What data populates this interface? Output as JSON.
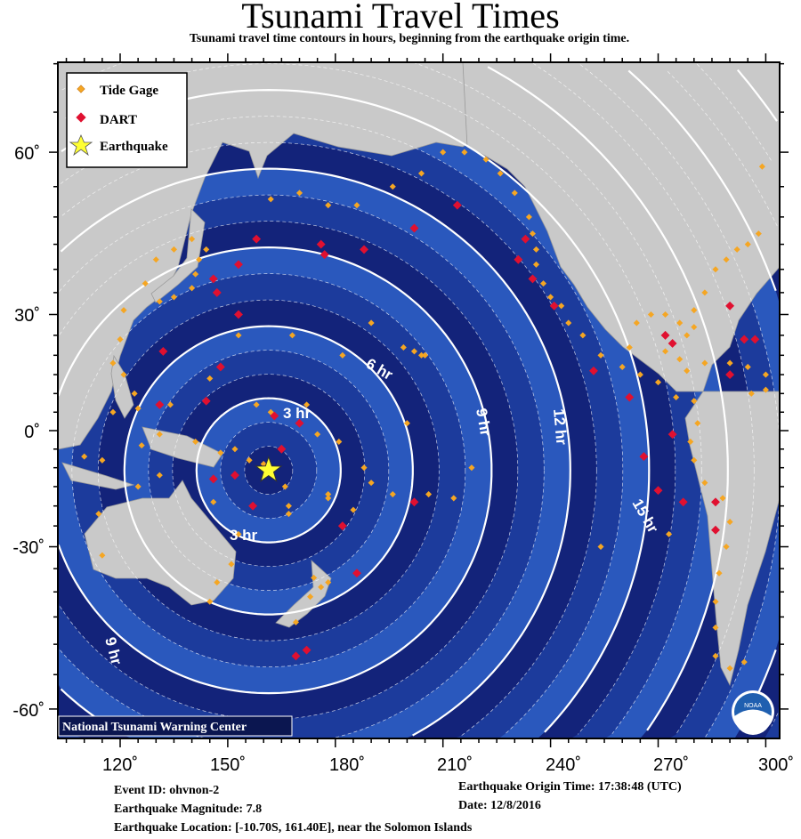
{
  "header": {
    "title": "Tsunami Travel Times",
    "subtitle": "Tsunami travel time contours in hours, beginning from the earthquake origin time."
  },
  "map": {
    "lon_ticks": [
      "120˚",
      "150˚",
      "180˚",
      "210˚",
      "240˚",
      "270˚",
      "300˚"
    ],
    "lat_ticks": [
      "60˚",
      "30˚",
      "0˚",
      "-30˚",
      "-60˚"
    ],
    "contour_labels": [
      "3 hr",
      "3 hr",
      "6 hr",
      "9 hr",
      "9 hr",
      "12 hr",
      "15 hr"
    ],
    "credit": "National Tsunami Warning Center",
    "logo_text": "NOAA",
    "colors": {
      "ocean_dark": "#0b1650",
      "band_a": "#13237a",
      "band_b": "#1c3b9c",
      "band_c": "#2a58bd",
      "land": "#c9c9c9",
      "tide_gage": "#f5a623",
      "dart": "#e01030",
      "earthquake": "#ffff33"
    },
    "earthquake": {
      "lon": 161.4,
      "lat": -10.7
    },
    "dart": [
      [
        165,
        -5
      ],
      [
        170,
        2
      ],
      [
        163,
        4
      ],
      [
        152,
        -12
      ],
      [
        146,
        -13
      ],
      [
        157,
        -20
      ],
      [
        182,
        -25
      ],
      [
        186,
        -36
      ],
      [
        202,
        -19
      ],
      [
        172,
        -51
      ],
      [
        169,
        -52
      ],
      [
        176,
        45
      ],
      [
        158,
        46
      ],
      [
        153,
        41
      ],
      [
        147,
        35
      ],
      [
        146,
        38
      ],
      [
        153,
        30
      ],
      [
        177,
        43
      ],
      [
        188,
        44
      ],
      [
        202,
        48
      ],
      [
        214,
        52
      ],
      [
        233,
        46
      ],
      [
        231,
        42
      ],
      [
        235,
        38
      ],
      [
        241,
        32
      ],
      [
        252,
        16
      ],
      [
        262,
        9
      ],
      [
        266,
        -7
      ],
      [
        274,
        -1
      ],
      [
        286,
        -19
      ],
      [
        286,
        -26
      ],
      [
        277,
        -19
      ],
      [
        270,
        -16
      ],
      [
        132,
        21
      ],
      [
        131,
        7
      ],
      [
        148,
        17
      ],
      [
        144,
        8
      ],
      [
        290,
        32
      ],
      [
        294,
        24
      ],
      [
        297,
        24
      ],
      [
        290,
        15
      ],
      [
        274,
        23
      ],
      [
        272,
        25
      ]
    ],
    "tide_gages": [
      [
        131,
        33
      ],
      [
        135,
        34
      ],
      [
        140,
        36
      ],
      [
        141,
        39
      ],
      [
        142,
        42
      ],
      [
        144,
        44
      ],
      [
        140,
        46
      ],
      [
        135,
        44
      ],
      [
        130,
        42
      ],
      [
        127,
        37
      ],
      [
        121,
        31
      ],
      [
        120,
        24
      ],
      [
        118,
        18
      ],
      [
        121,
        15
      ],
      [
        124,
        10
      ],
      [
        125,
        6
      ],
      [
        118,
        5
      ],
      [
        110,
        -7
      ],
      [
        115,
        -8
      ],
      [
        126,
        -4
      ],
      [
        131,
        -1
      ],
      [
        141,
        -3
      ],
      [
        148,
        -6
      ],
      [
        152,
        -5
      ],
      [
        156,
        -8
      ],
      [
        160,
        -9
      ],
      [
        166,
        -15
      ],
      [
        167,
        -20
      ],
      [
        167,
        -22
      ],
      [
        178,
        -18
      ],
      [
        178,
        -17
      ],
      [
        185,
        -21
      ],
      [
        190,
        -14
      ],
      [
        188,
        -10
      ],
      [
        196,
        -17
      ],
      [
        206,
        -17
      ],
      [
        213,
        -18
      ],
      [
        218,
        -10
      ],
      [
        202,
        21
      ],
      [
        204,
        20
      ],
      [
        199,
        22
      ],
      [
        205,
        20
      ],
      [
        190,
        28
      ],
      [
        182,
        20
      ],
      [
        168,
        25
      ],
      [
        153,
        25
      ],
      [
        145,
        14
      ],
      [
        134,
        7
      ],
      [
        158,
        7
      ],
      [
        162,
        5
      ],
      [
        172,
        7
      ],
      [
        175,
        -1
      ],
      [
        181,
        -3
      ],
      [
        200,
        2
      ],
      [
        173,
        -41
      ],
      [
        174,
        -37
      ],
      [
        176,
        -39
      ],
      [
        178,
        -38
      ],
      [
        169,
        -46
      ],
      [
        151,
        -34
      ],
      [
        153,
        -27
      ],
      [
        146,
        -19
      ],
      [
        115,
        -32
      ],
      [
        114,
        -22
      ],
      [
        125,
        -15
      ],
      [
        131,
        -12
      ],
      [
        145,
        -42
      ],
      [
        147,
        -38
      ],
      [
        162,
        53
      ],
      [
        170,
        54
      ],
      [
        178,
        52
      ],
      [
        186,
        52
      ],
      [
        196,
        55
      ],
      [
        204,
        57
      ],
      [
        210,
        60
      ],
      [
        216,
        60
      ],
      [
        222,
        59
      ],
      [
        226,
        57
      ],
      [
        230,
        54
      ],
      [
        234,
        50
      ],
      [
        235,
        47
      ],
      [
        236,
        44
      ],
      [
        236,
        41
      ],
      [
        238,
        37
      ],
      [
        240,
        34
      ],
      [
        243,
        32
      ],
      [
        245,
        28
      ],
      [
        249,
        25
      ],
      [
        254,
        20
      ],
      [
        260,
        17
      ],
      [
        265,
        15
      ],
      [
        270,
        13
      ],
      [
        275,
        9
      ],
      [
        280,
        8
      ],
      [
        281,
        2
      ],
      [
        279,
        -3
      ],
      [
        280,
        -8
      ],
      [
        283,
        -14
      ],
      [
        288,
        -18
      ],
      [
        290,
        -24
      ],
      [
        289,
        -30
      ],
      [
        287,
        -36
      ],
      [
        286,
        -42
      ],
      [
        286,
        -47
      ],
      [
        286,
        -52
      ],
      [
        290,
        -54
      ],
      [
        294,
        -53
      ],
      [
        262,
        22
      ],
      [
        264,
        28
      ],
      [
        268,
        30
      ],
      [
        272,
        30
      ],
      [
        276,
        28
      ],
      [
        278,
        25
      ],
      [
        280,
        27
      ],
      [
        280,
        31
      ],
      [
        283,
        35
      ],
      [
        286,
        40
      ],
      [
        289,
        42
      ],
      [
        292,
        44
      ],
      [
        295,
        45
      ],
      [
        298,
        47
      ],
      [
        283,
        18
      ],
      [
        290,
        18
      ],
      [
        295,
        17
      ],
      [
        300,
        15
      ],
      [
        296,
        10
      ],
      [
        300,
        11
      ],
      [
        278,
        16
      ],
      [
        276,
        19
      ],
      [
        272,
        21
      ],
      [
        254,
        -30
      ],
      [
        273,
        -27
      ],
      [
        299,
        58
      ]
    ]
  },
  "legend": {
    "tide_gage": "Tide Gage",
    "dart": "DART",
    "earthquake": "Earthquake"
  },
  "event": {
    "event_id": "Event ID: ohvnon-2",
    "magnitude": "Earthquake Magnitude: 7.8",
    "location": "Earthquake Location: [-10.70S, 161.40E], near the Solomon Islands",
    "origin_time": "Earthquake Origin Time: 17:38:48 (UTC)",
    "date": "Date: 12/8/2016"
  }
}
